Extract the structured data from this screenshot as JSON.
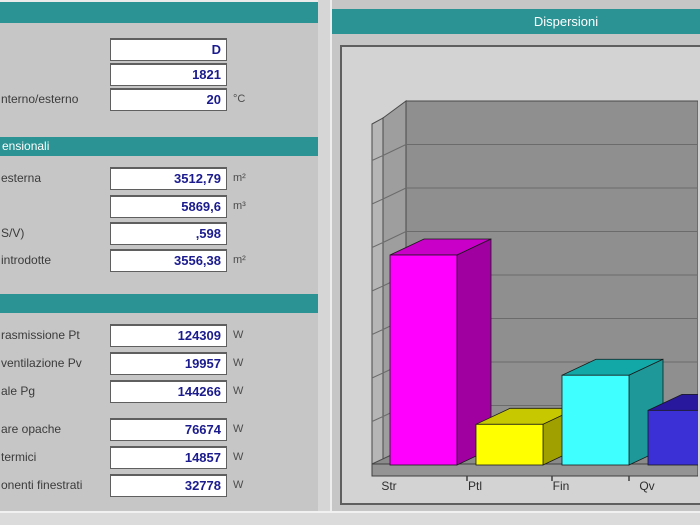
{
  "theme": {
    "accent_color": "#2b9394",
    "value_text_color": "#1b1b8e"
  },
  "left_panel": {
    "general": {
      "fields": [
        {
          "label": "",
          "value": "D",
          "unit": ""
        },
        {
          "label": "",
          "value": "1821",
          "unit": ""
        },
        {
          "label": "nterno/esterno",
          "value": "20",
          "unit": "°C"
        }
      ]
    },
    "dimensional": {
      "title": "ensionali",
      "fields": [
        {
          "label": "esterna",
          "value": "3512,79",
          "unit": "m²"
        },
        {
          "label": "",
          "value": "5869,6",
          "unit": "m³"
        },
        {
          "label": "S/V)",
          "value": ",598",
          "unit": ""
        },
        {
          "label": "introdotte",
          "value": "3556,38",
          "unit": "m²"
        }
      ]
    },
    "power": {
      "title": "",
      "fields": [
        {
          "label": "rasmissione Pt",
          "value": "124309",
          "unit": "W"
        },
        {
          "label": "ventilazione Pv",
          "value": "19957",
          "unit": "W"
        },
        {
          "label": "ale Pg",
          "value": "144266",
          "unit": "W"
        }
      ]
    },
    "components": {
      "fields": [
        {
          "label": "are opache",
          "value": "76674",
          "unit": "W"
        },
        {
          "label": "termici",
          "value": "14857",
          "unit": "W"
        },
        {
          "label": "onenti finestrati",
          "value": "32778",
          "unit": "W"
        }
      ]
    }
  },
  "right_panel": {
    "title": "Dispersioni"
  },
  "chart_data": {
    "type": "bar",
    "title": "Dispersioni",
    "categories": [
      "Str",
      "Ptl",
      "Fin",
      "Qv"
    ],
    "values": [
      76674,
      14857,
      32778,
      19957
    ],
    "unit": "W",
    "style": "3d-bars",
    "gridlines": "horizontal",
    "y_axis_labels": false,
    "legend": false,
    "colors": [
      {
        "front": "#ff00ff",
        "side": "#a000a0",
        "top": "#c800c8"
      },
      {
        "front": "#ffff00",
        "side": "#a0a000",
        "top": "#c8c800"
      },
      {
        "front": "#40ffff",
        "side": "#1e9898",
        "top": "#12a8a8"
      },
      {
        "front": "#3a30d6",
        "side": "#1e1e96",
        "top": "#28189e"
      }
    ]
  }
}
